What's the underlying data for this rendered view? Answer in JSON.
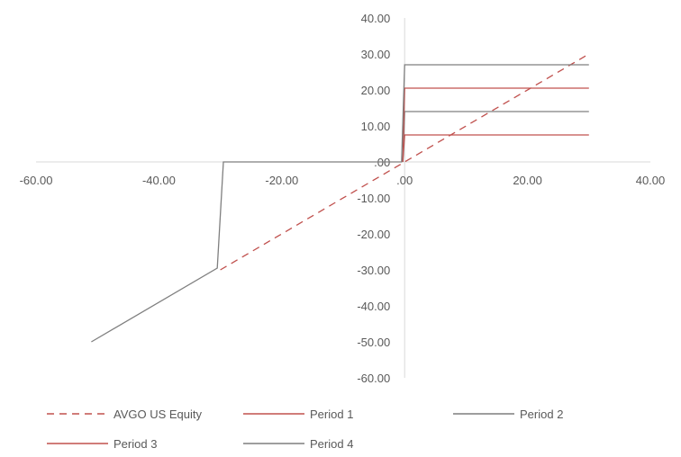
{
  "chart_data": {
    "type": "line",
    "title": "",
    "xlabel": "",
    "ylabel": "",
    "xlim": [
      -60,
      40
    ],
    "ylim": [
      -60,
      40
    ],
    "x_ticks": [
      "-60.00",
      "-40.00",
      "-20.00",
      ".00",
      "20.00",
      "40.00"
    ],
    "y_ticks": [
      "40.00",
      "30.00",
      "20.00",
      "10.00",
      ".00",
      "-10.00",
      "-20.00",
      "-30.00",
      "-40.00",
      "-50.00",
      "-60.00"
    ],
    "grid": false,
    "legend_position": "bottom",
    "series": [
      {
        "name": "AVGO US Equity",
        "color": "#c0504d",
        "dash": "dashed",
        "points": [
          [
            -30,
            -30
          ],
          [
            30,
            30
          ]
        ]
      },
      {
        "name": "Period 1",
        "color": "#c0504d",
        "dash": "solid",
        "points": [
          [
            -0.3,
            0
          ],
          [
            0,
            7.5
          ],
          [
            30,
            7.5
          ]
        ]
      },
      {
        "name": "Period 2",
        "color": "#7f7f7f",
        "dash": "solid",
        "points": [
          [
            -0.3,
            0
          ],
          [
            0,
            14
          ],
          [
            30,
            14
          ]
        ]
      },
      {
        "name": "Period 3",
        "color": "#c0504d",
        "dash": "solid",
        "points": [
          [
            -0.3,
            0
          ],
          [
            0,
            20.5
          ],
          [
            30,
            20.5
          ]
        ]
      },
      {
        "name": "Period 4",
        "color": "#7f7f7f",
        "dash": "solid",
        "points": [
          [
            -51,
            -50
          ],
          [
            -30.5,
            -29.5
          ],
          [
            -29.5,
            0
          ],
          [
            -0.5,
            0
          ],
          [
            0,
            27
          ],
          [
            30,
            27
          ]
        ]
      }
    ]
  }
}
